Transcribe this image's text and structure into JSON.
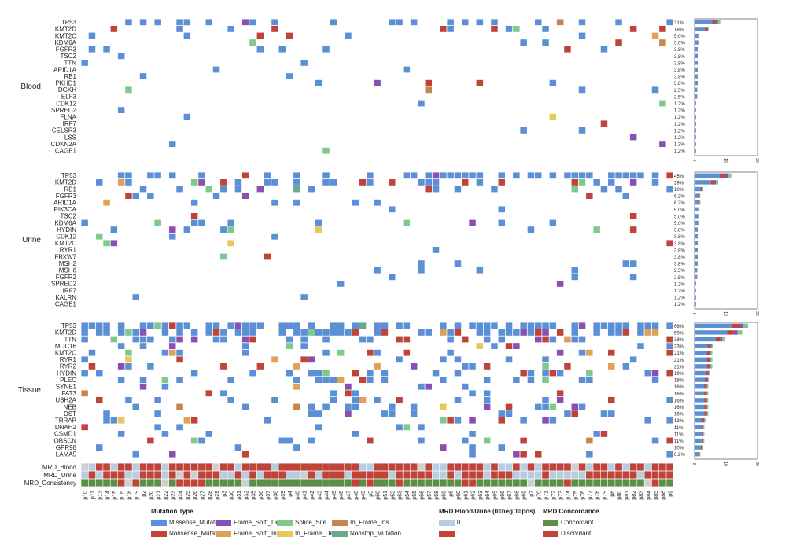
{
  "colors": {
    "Missense_Mutation": "#5b8fd6",
    "Nonsense_Mutation": "#c0433a",
    "Frame_Shift_Del": "#8a4fb0",
    "Frame_Shift_Ins": "#e0a05a",
    "Splice_Site": "#7fc98a",
    "In_Frame_Del": "#e8c85a",
    "In_Frame_Ins": "#c8864e",
    "Nonstop_Mutation": "#6aa88a",
    "mrd0": "#b8cde0",
    "mrd1": "#c0433a",
    "concordant": "#5c8f45",
    "discordant": "#c0433a",
    "na": "#cfcfcf"
  },
  "chart_data": {
    "type": "heatmap",
    "title": "",
    "samples": [
      "p10",
      "p11",
      "p13",
      "p14",
      "p15",
      "p16",
      "p18",
      "p19",
      "p2",
      "p20",
      "p21",
      "p22",
      "p23",
      "p24",
      "p25",
      "p26",
      "p27",
      "p28",
      "p29",
      "p3",
      "p30",
      "p31",
      "p32",
      "p35",
      "p36",
      "p37",
      "p38",
      "p39",
      "p4",
      "p40",
      "p41",
      "p42",
      "p43",
      "p44",
      "p45",
      "p46",
      "p47",
      "p48",
      "p49",
      "p5",
      "p50",
      "p51",
      "p52",
      "p53",
      "p54",
      "p55",
      "p56",
      "p57",
      "p58",
      "p59",
      "p6",
      "p60",
      "p61",
      "p62",
      "p63",
      "p64",
      "p65",
      "p66",
      "p67",
      "p68",
      "p69",
      "p7",
      "p70",
      "p71",
      "p72",
      "p73",
      "p74",
      "p75",
      "p76",
      "p77",
      "p78",
      "p79",
      "p8",
      "p80",
      "p81",
      "p82",
      "p83",
      "p84",
      "p85",
      "p86",
      "p9"
    ],
    "xaxis_display": [
      "p10",
      "p11",
      "p13",
      "p14",
      "p15",
      "p16",
      "p18",
      "p19",
      "p2",
      "p20",
      "p21",
      "p22",
      "p23",
      "p24",
      "p25",
      "p26",
      "p27",
      "p28",
      "p29",
      "p3",
      "p30",
      "p31",
      "p32",
      "p35",
      "p36",
      "p37",
      "p38",
      "p39",
      "p4",
      "p40",
      "p41",
      "p42",
      "p43",
      "p44",
      "p45",
      "p46",
      "p47",
      "p48",
      "p49",
      "p5",
      "p50",
      "p51",
      "p52",
      "p53",
      "p54",
      "p55",
      "p56",
      "p57",
      "p58",
      "p59",
      "p6",
      "p60",
      "p61",
      "p62",
      "p63",
      "p64",
      "p65",
      "p66",
      "p67",
      "p68",
      "p69",
      "p7",
      "p70",
      "p71",
      "p72",
      "p73",
      "p74",
      "p75",
      "p76",
      "p77",
      "p78",
      "p79",
      "p8",
      "p80",
      "p81",
      "p82",
      "p83",
      "p84",
      "p85",
      "p86",
      "p9"
    ],
    "legend_mutation_title": "Mutation Type",
    "legend_mutation_items": [
      "Missense_Mutation",
      "Nonsense_Mutation",
      "Frame_Shift_Del",
      "Frame_Shift_Ins",
      "Splice_Site",
      "In_Frame_Del",
      "In_Frame_Ins",
      "Nonstop_Mutation"
    ],
    "legend_mrd_title": "MRD Blood/Urine (0=neg,1=pos)",
    "legend_mrd_items": [
      "0",
      "1"
    ],
    "legend_conc_title": "MRD Concordance",
    "legend_conc_items": [
      "Concordant",
      "Discordant"
    ],
    "bar_axis_ticks": [
      "0",
      "10",
      "20"
    ],
    "panels": [
      {
        "name": "Blood",
        "genes": [
          "TP53",
          "KMT2D",
          "KMT2C",
          "KDM6A",
          "FGFR3",
          "TSC2",
          "TTN",
          "ARID1A",
          "RB1",
          "PKHD1",
          "DGKH",
          "ELF3",
          "CDK12",
          "SPRED2",
          "FLNA",
          "IRF7",
          "CELSR3",
          "LSS",
          "CDKN2A",
          "CAGE1"
        ],
        "percents": [
          "31%",
          "18%",
          "5.0%",
          "5.0%",
          "3.8%",
          "3.8%",
          "3.8%",
          "3.8%",
          "3.8%",
          "3.8%",
          "2.5%",
          "2.5%",
          "1.2%",
          "1.2%",
          "1.2%",
          "1.2%",
          "1.2%",
          "1.2%",
          "1.2%",
          "1.2%"
        ],
        "counts": [
          25,
          14,
          4,
          4,
          3,
          3,
          3,
          3,
          3,
          3,
          2,
          2,
          1,
          1,
          1,
          1,
          1,
          1,
          1,
          1
        ],
        "density": 0.09
      },
      {
        "name": "Urine",
        "genes": [
          "TP53",
          "KMT2D",
          "RB1",
          "FGFR3",
          "ARID1A",
          "PIK3CA",
          "TSC2",
          "KDM6A",
          "HYDIN",
          "CDK12",
          "KMT2C",
          "RYR1",
          "FBXW7",
          "MSH2",
          "MSH6",
          "FGFR2",
          "SPRED2",
          "IRF7",
          "KALRN",
          "CAGE1"
        ],
        "percents": [
          "45%",
          "29%",
          "10%",
          "6.2%",
          "6.2%",
          "5.0%",
          "5.0%",
          "5.0%",
          "3.8%",
          "3.8%",
          "3.8%",
          "3.8%",
          "3.8%",
          "3.8%",
          "2.5%",
          "2.5%",
          "1.2%",
          "1.2%",
          "1.2%",
          "1.2%"
        ],
        "counts": [
          36,
          23,
          8,
          5,
          5,
          4,
          4,
          4,
          3,
          3,
          3,
          3,
          3,
          3,
          2,
          2,
          1,
          1,
          1,
          1
        ],
        "density": 0.12
      },
      {
        "name": "Tissue",
        "genes": [
          "TP53",
          "KMT2D",
          "TTN",
          "MUC16",
          "KMT2C",
          "RYR1",
          "RYR2",
          "HYDIN",
          "PLEC",
          "SYNE1",
          "FAT3",
          "USH2A",
          "NEB",
          "DST",
          "TRRAP",
          "DNAH2",
          "CSMD1",
          "OBSCN",
          "GPR98",
          "LAMA5"
        ],
        "percents": [
          "66%",
          "59%",
          "38%",
          "23%",
          "21%",
          "21%",
          "21%",
          "19%",
          "18%",
          "16%",
          "16%",
          "16%",
          "16%",
          "16%",
          "13%",
          "11%",
          "11%",
          "11%",
          "10%",
          "6.2%"
        ],
        "counts": [
          53,
          47,
          30,
          18,
          17,
          17,
          17,
          15,
          14,
          13,
          13,
          13,
          13,
          13,
          10,
          9,
          9,
          9,
          8,
          5
        ],
        "density": 0.25
      }
    ],
    "annotation_rows": [
      "MRD_Blood",
      "MRD_Urine",
      "MRD_Consistency"
    ]
  }
}
